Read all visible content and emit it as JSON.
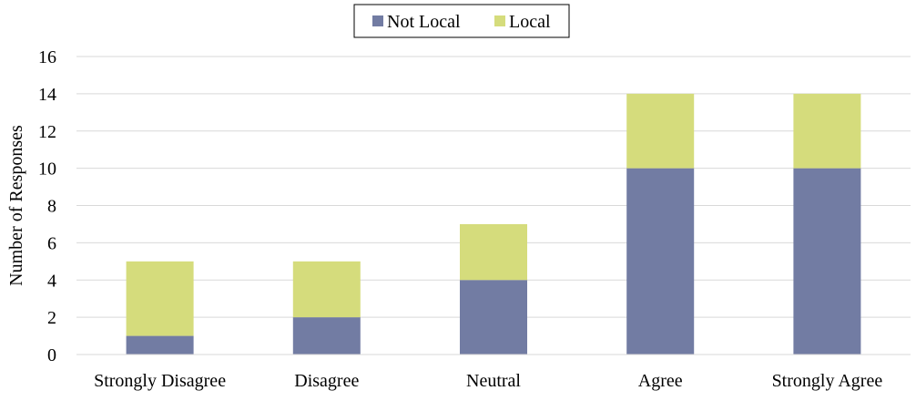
{
  "chart_data": {
    "type": "bar",
    "stacked": true,
    "title": "",
    "xlabel": "",
    "ylabel": "Number of Responses",
    "categories": [
      "Strongly Disagree",
      "Disagree",
      "Neutral",
      "Agree",
      "Strongly Agree"
    ],
    "series": [
      {
        "name": "Not Local",
        "values": [
          1,
          2,
          4,
          10,
          10
        ],
        "color": "#727ca3"
      },
      {
        "name": "Local",
        "values": [
          4,
          3,
          3,
          4,
          4
        ],
        "color": "#d5dc7c"
      }
    ],
    "ylim": [
      0,
      16
    ],
    "yticks": [
      0,
      2,
      4,
      6,
      8,
      10,
      12,
      14,
      16
    ],
    "grid": true,
    "legend_position": "top-center"
  }
}
